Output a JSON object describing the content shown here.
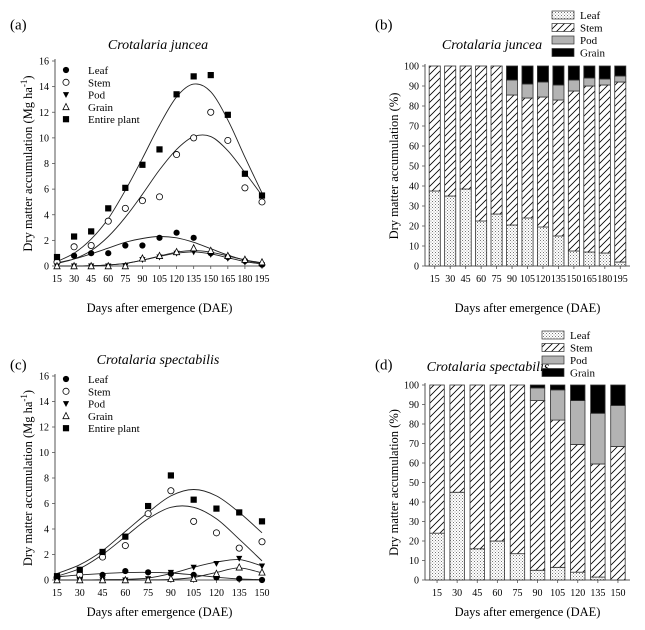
{
  "chart_data": [
    {
      "id": "a",
      "type": "scatter",
      "panel_label": "(a)",
      "title": "Crotalaria juncea",
      "xlabel": "Days after emergence (DAE)",
      "ylabel": "Dry matter accumulation (Mg ha",
      "ylabel_sup": "-1",
      "ylabel_close": ")",
      "x": [
        15,
        30,
        45,
        60,
        75,
        90,
        105,
        120,
        135,
        150,
        165,
        180,
        195
      ],
      "xlim": [
        15,
        195
      ],
      "ylim": [
        0,
        16
      ],
      "yticks": [
        0,
        2,
        4,
        6,
        8,
        10,
        12,
        14,
        16
      ],
      "legend_position": "top-left",
      "series": [
        {
          "name": "Leaf",
          "marker": "filled-circle",
          "values": [
            0.3,
            0.8,
            1.0,
            1.0,
            1.6,
            1.6,
            2.2,
            2.6,
            2.2,
            1.0,
            0.7,
            0.4,
            0.1
          ],
          "fit": [
            0.25,
            0.55,
            0.95,
            1.4,
            1.85,
            2.15,
            2.3,
            2.2,
            1.85,
            1.35,
            0.85,
            0.45,
            0.2
          ]
        },
        {
          "name": "Stem",
          "marker": "open-circle",
          "values": [
            0.3,
            1.5,
            1.6,
            3.5,
            4.5,
            5.1,
            5.4,
            8.7,
            10.0,
            12.0,
            9.8,
            6.1,
            5.0
          ],
          "fit": [
            0.2,
            0.55,
            1.2,
            2.3,
            3.8,
            5.6,
            7.5,
            9.1,
            10.1,
            10.1,
            9.0,
            7.3,
            5.5
          ]
        },
        {
          "name": "Pod",
          "marker": "filled-triangle-down",
          "values": [
            0.0,
            0.0,
            0.0,
            0.0,
            0.0,
            0.5,
            0.7,
            1.0,
            1.1,
            0.9,
            0.6,
            0.3,
            0.1
          ],
          "fit": [
            0.0,
            0.0,
            0.02,
            0.08,
            0.2,
            0.45,
            0.75,
            1.0,
            1.1,
            0.95,
            0.65,
            0.35,
            0.15
          ]
        },
        {
          "name": "Grain",
          "marker": "open-triangle-up",
          "values": [
            0.0,
            0.0,
            0.0,
            0.0,
            0.0,
            0.6,
            0.8,
            1.1,
            1.4,
            1.2,
            0.8,
            0.5,
            0.3
          ],
          "fit": [
            0.0,
            0.0,
            0.02,
            0.08,
            0.2,
            0.45,
            0.78,
            1.08,
            1.2,
            1.08,
            0.78,
            0.48,
            0.25
          ]
        },
        {
          "name": "Entire plant",
          "marker": "filled-square",
          "values": [
            0.7,
            2.3,
            2.7,
            4.5,
            6.1,
            7.9,
            9.1,
            13.4,
            14.8,
            14.9,
            11.8,
            7.2,
            5.5
          ],
          "fit": [
            0.35,
            1.0,
            2.1,
            3.7,
            5.9,
            8.4,
            11.0,
            13.2,
            14.2,
            13.6,
            11.4,
            8.5,
            5.7
          ]
        }
      ]
    },
    {
      "id": "b",
      "type": "bar",
      "stacked": true,
      "panel_label": "(b)",
      "title": "Crotalaria juncea",
      "xlabel": "Days after emergence (DAE)",
      "ylabel": "Dry matter accumulation (%)",
      "categories": [
        "15",
        "30",
        "45",
        "60",
        "75",
        "90",
        "105",
        "120",
        "135",
        "150",
        "165",
        "180",
        "195"
      ],
      "ylim": [
        0,
        100
      ],
      "yticks": [
        0,
        10,
        20,
        30,
        40,
        50,
        60,
        70,
        80,
        90,
        100
      ],
      "legend_position": "top-right",
      "series": [
        {
          "name": "Leaf",
          "pattern": "dots",
          "values": [
            37.5,
            35,
            38.5,
            22.5,
            26,
            20.5,
            24,
            19.5,
            15,
            7.5,
            7,
            6.5,
            2
          ]
        },
        {
          "name": "Stem",
          "pattern": "hatch",
          "values": [
            62.5,
            65,
            61.5,
            77.5,
            74,
            65,
            60,
            65,
            68,
            80,
            83,
            84,
            90
          ]
        },
        {
          "name": "Pod",
          "pattern": "gray",
          "values": [
            0,
            0,
            0,
            0,
            0,
            7.5,
            7,
            7.5,
            7.5,
            5.5,
            4,
            3,
            3
          ]
        },
        {
          "name": "Grain",
          "pattern": "black",
          "values": [
            0,
            0,
            0,
            0,
            0,
            7,
            9,
            8,
            9.5,
            7,
            6,
            6.5,
            5
          ]
        }
      ]
    },
    {
      "id": "c",
      "type": "scatter",
      "panel_label": "(c)",
      "title": "Crotalaria spectabilis",
      "xlabel": "Days after emergence (DAE)",
      "ylabel": "Dry matter accumulation (Mg  ha",
      "ylabel_sup": "-1",
      "ylabel_close": ")",
      "x": [
        15,
        30,
        45,
        60,
        75,
        90,
        105,
        120,
        135,
        150
      ],
      "xlim": [
        15,
        150
      ],
      "ylim": [
        0,
        16
      ],
      "yticks": [
        0,
        2,
        4,
        6,
        8,
        10,
        12,
        14,
        16
      ],
      "legend_position": "top-left",
      "series": [
        {
          "name": "Leaf",
          "marker": "filled-circle",
          "values": [
            0.1,
            0.2,
            0.4,
            0.7,
            0.6,
            0.5,
            0.4,
            0.2,
            0.1,
            0.0
          ],
          "fit": [
            0.25,
            0.4,
            0.5,
            0.58,
            0.6,
            0.55,
            0.4,
            0.22,
            0.08,
            0.02
          ]
        },
        {
          "name": "Stem",
          "marker": "open-circle",
          "values": [
            0.2,
            0.4,
            1.8,
            2.7,
            5.2,
            7.0,
            4.6,
            3.7,
            2.5,
            3.0
          ],
          "fit": [
            0.3,
            0.9,
            2.0,
            3.4,
            4.8,
            5.7,
            5.7,
            4.8,
            3.2,
            1.5
          ]
        },
        {
          "name": "Pod",
          "marker": "filled-triangle-down",
          "values": [
            0.0,
            0.0,
            0.0,
            0.0,
            0.1,
            0.6,
            1.0,
            1.3,
            1.7,
            1.1
          ],
          "fit": [
            0.0,
            0.0,
            0.02,
            0.05,
            0.15,
            0.5,
            1.0,
            1.4,
            1.6,
            1.1
          ]
        },
        {
          "name": "Grain",
          "marker": "open-triangle-up",
          "values": [
            0.0,
            0.0,
            0.0,
            0.0,
            0.0,
            0.1,
            0.1,
            0.5,
            1.0,
            0.6
          ],
          "fit": [
            0.0,
            0.0,
            0.0,
            0.0,
            0.01,
            0.05,
            0.2,
            0.6,
            0.95,
            0.55
          ]
        },
        {
          "name": "Entire plant",
          "marker": "filled-square",
          "values": [
            0.3,
            0.8,
            2.2,
            3.4,
            5.8,
            8.2,
            6.3,
            5.6,
            5.3,
            4.6
          ],
          "fit": [
            0.5,
            1.2,
            2.3,
            3.8,
            5.3,
            6.6,
            7.1,
            6.6,
            5.3,
            3.7
          ]
        }
      ]
    },
    {
      "id": "d",
      "type": "bar",
      "stacked": true,
      "panel_label": "(d)",
      "title": "Crotalaria spectabilis",
      "xlabel": "Days after emergence (DAE)",
      "ylabel": "Dry matter accumulation (%)",
      "categories": [
        "15",
        "30",
        "45",
        "60",
        "75",
        "90",
        "105",
        "120",
        "135",
        "150"
      ],
      "ylim": [
        0,
        100
      ],
      "yticks": [
        0,
        10,
        20,
        30,
        40,
        50,
        60,
        70,
        80,
        90,
        100
      ],
      "legend_position": "top-right",
      "series": [
        {
          "name": "Leaf",
          "pattern": "dots",
          "values": [
            24,
            45,
            16,
            20,
            13.5,
            5,
            6.5,
            4,
            1.5,
            0
          ]
        },
        {
          "name": "Stem",
          "pattern": "hatch",
          "values": [
            76,
            55,
            84,
            80,
            86.5,
            87,
            75.5,
            65.5,
            58,
            68.5
          ]
        },
        {
          "name": "Pod",
          "pattern": "gray",
          "values": [
            0,
            0,
            0,
            0,
            0,
            6.5,
            15.5,
            22.5,
            26,
            21
          ]
        },
        {
          "name": "Grain",
          "pattern": "black",
          "values": [
            0,
            0,
            0,
            0,
            0,
            1.5,
            2.5,
            8,
            14.5,
            10.5
          ]
        }
      ]
    }
  ]
}
